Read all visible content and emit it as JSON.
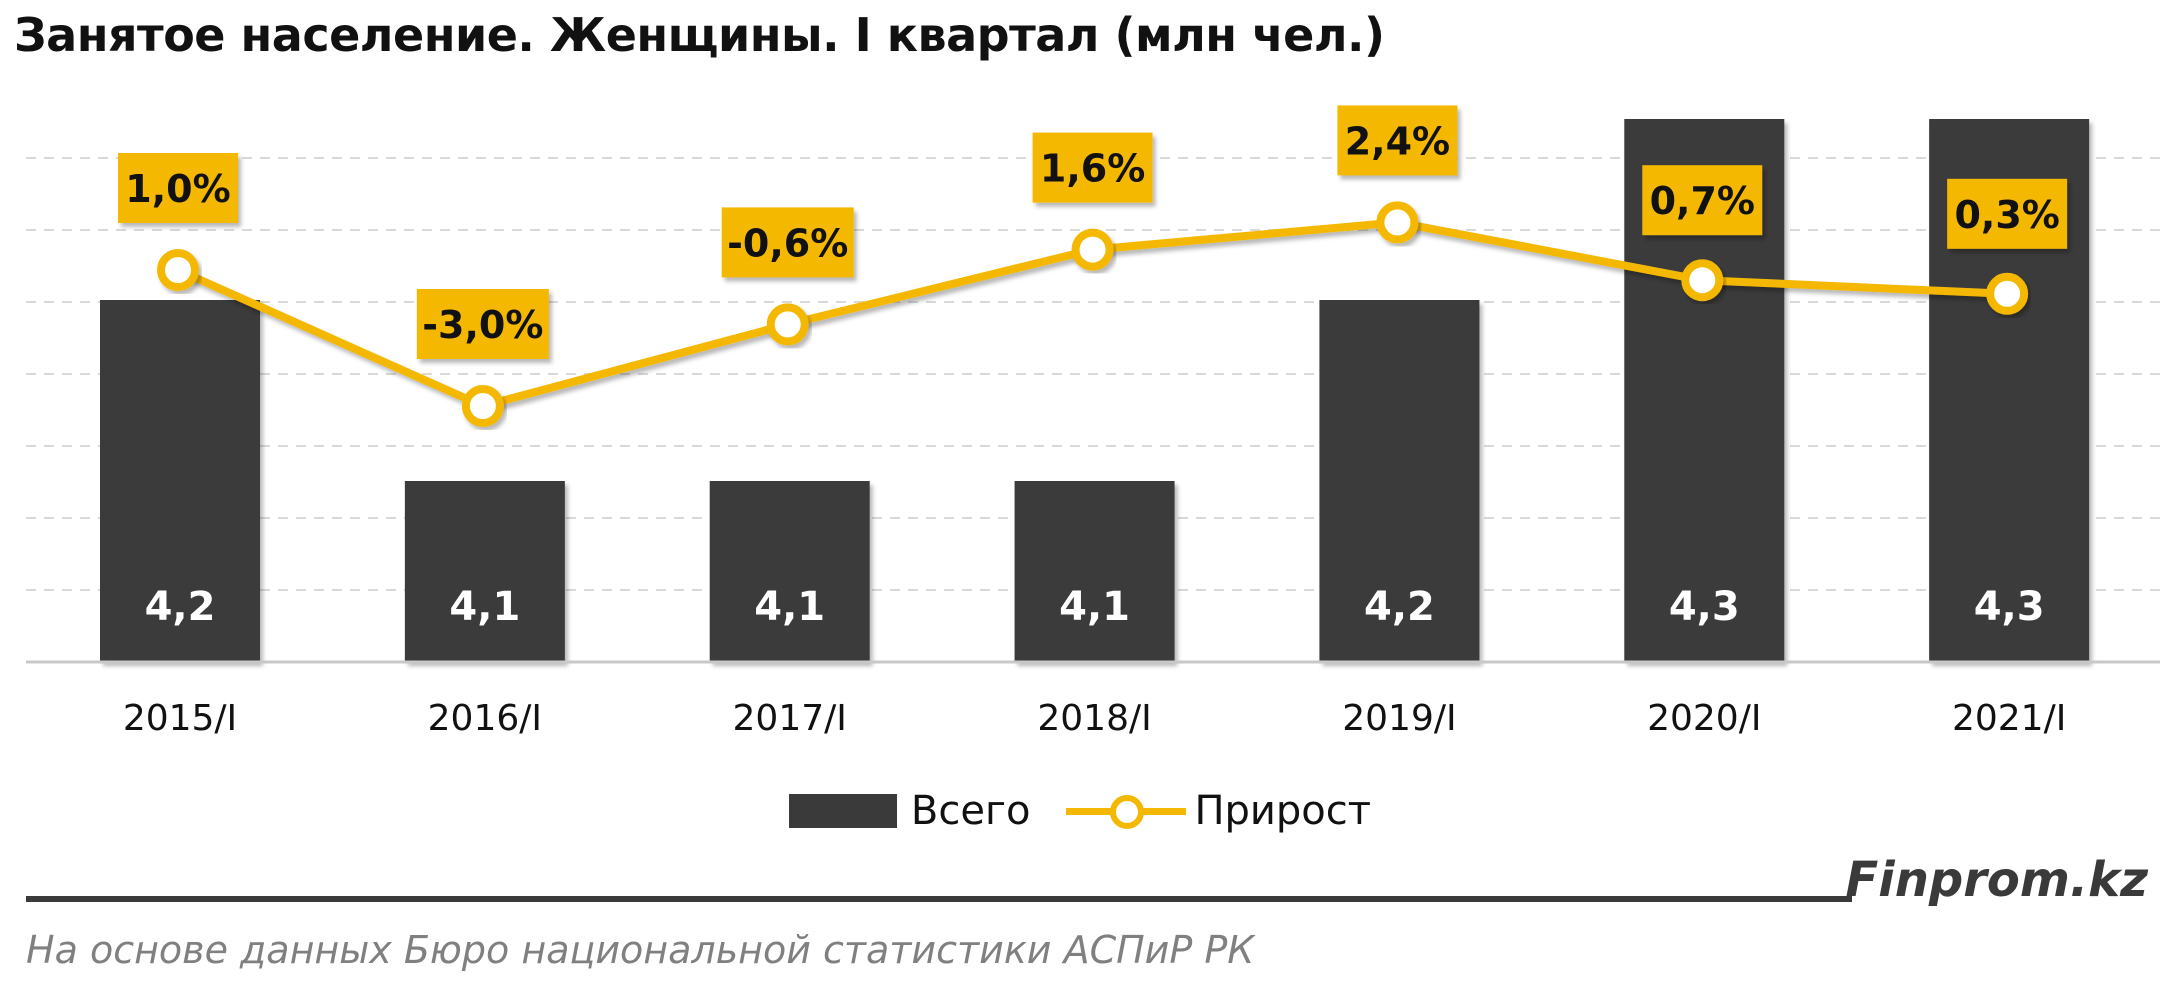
{
  "title": "Занятое население. Женщины. I квартал (млн чел.)",
  "brand": "Finprom.kz",
  "source": "На основе данных Бюро национальной статистики АСПиР РК",
  "colors": {
    "bar": "#3a3a3a",
    "line": "#f5b800",
    "label_bg": "#f5b800",
    "grid": "#d9d9d9",
    "axis": "#c8c8c8"
  },
  "chart_data": {
    "type": "bar",
    "categories": [
      "2015/I",
      "2016/I",
      "2017/I",
      "2018/I",
      "2019/I",
      "2020/I",
      "2021/I"
    ],
    "series": [
      {
        "name": "Всего",
        "type": "bar",
        "values": [
          4.2,
          4.1,
          4.1,
          4.1,
          4.2,
          4.3,
          4.3
        ],
        "labels": [
          "4,2",
          "4,1",
          "4,1",
          "4,1",
          "4,2",
          "4,3",
          "4,3"
        ]
      },
      {
        "name": "Прирост",
        "type": "line",
        "values": [
          1.0,
          -3.0,
          -0.6,
          1.6,
          2.4,
          0.7,
          0.3
        ],
        "labels": [
          "1,0%",
          "-3,0%",
          "-0,6%",
          "1,6%",
          "2,4%",
          "0,7%",
          "0,3%"
        ]
      }
    ],
    "grid": true,
    "legend": "bottom-center"
  }
}
